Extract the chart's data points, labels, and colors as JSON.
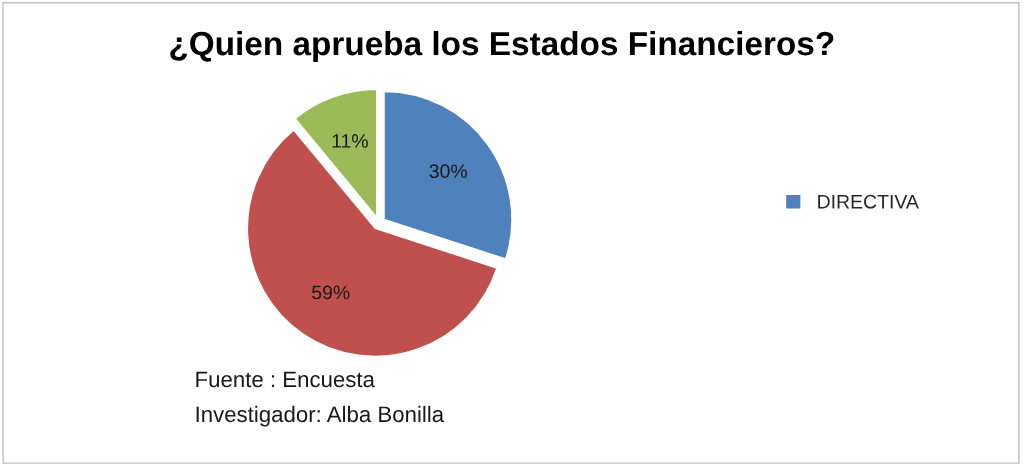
{
  "chart_data": {
    "type": "pie",
    "title": "¿Quien aprueba los Estados Financieros?",
    "categories": [
      "DIRECTIVA",
      null,
      null
    ],
    "values": [
      30,
      59,
      11
    ],
    "value_labels": [
      "30%",
      "59%",
      "11%"
    ],
    "colors": [
      "#4f81bd",
      "#c0504d",
      "#9bbb59"
    ],
    "legend": "right",
    "annotations": [
      "Fuente : Encuesta",
      "Investigador: Alba Bonilla"
    ]
  }
}
